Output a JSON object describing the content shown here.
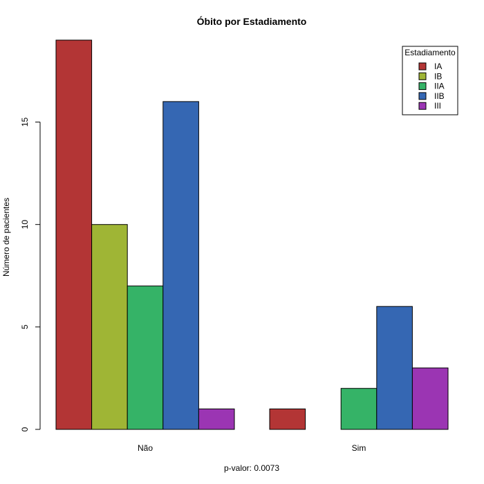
{
  "chart_data": {
    "type": "bar",
    "mode": "grouped",
    "title": "Óbito por Estadiamento",
    "xlabel": "p-valor: 0.0073",
    "ylabel": "Número de pacientes",
    "categories": [
      "Não",
      "Sim"
    ],
    "ylim": [
      0,
      19
    ],
    "yticks": [
      0,
      5,
      10,
      15
    ],
    "grid": false,
    "legend": {
      "title": "Estadiamento",
      "placement": "top-right"
    },
    "series": [
      {
        "name": "IA",
        "color": "#B33535",
        "values": [
          19,
          1
        ]
      },
      {
        "name": "IB",
        "color": "#9FB535",
        "values": [
          10,
          0
        ]
      },
      {
        "name": "IIA",
        "color": "#35B367",
        "values": [
          7,
          2
        ]
      },
      {
        "name": "IIB",
        "color": "#3567B3",
        "values": [
          16,
          6
        ]
      },
      {
        "name": "III",
        "color": "#9B35B3",
        "values": [
          1,
          3
        ]
      }
    ]
  }
}
